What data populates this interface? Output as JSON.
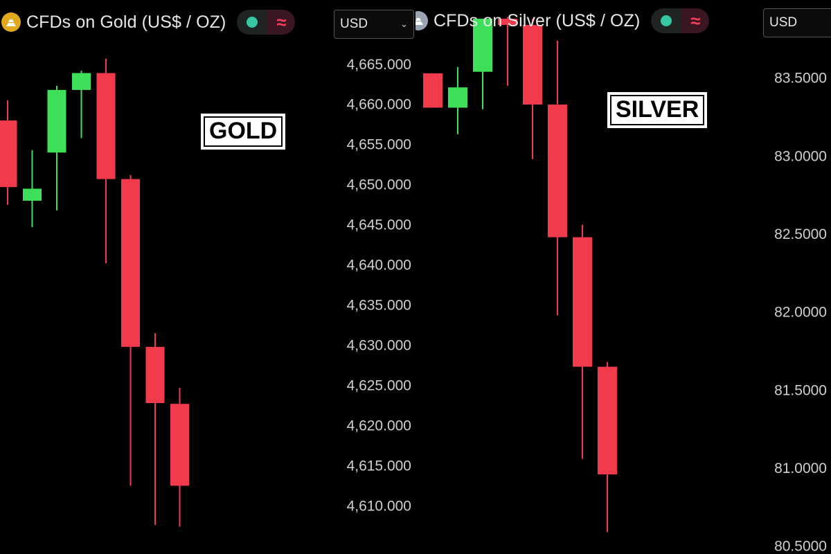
{
  "colors": {
    "up": "#3ee05a",
    "down": "#f23a4d",
    "background": "#000000",
    "text": "#d0d0d0"
  },
  "gold": {
    "header": {
      "title": "CFDs on Gold (US$ / OZ)",
      "logo_icon": "gold-bars-icon",
      "logo_color": "#e0a91e",
      "status_dot_color": "#35c6a3",
      "status_wave_icon": "≈",
      "status_wave_color": "#f0405c"
    },
    "currency": "USD",
    "watermark": "GOLD"
  },
  "silver": {
    "header": {
      "title": "CFDs on Silver (US$ / OZ)",
      "logo_icon": "silver-bars-icon",
      "logo_color": "#9aa4b3",
      "status_dot_color": "#35c6a3",
      "status_wave_icon": "≈",
      "status_wave_color": "#f0405c"
    },
    "currency": "USD",
    "watermark": "SILVER"
  },
  "chart_data": [
    {
      "type": "candlestick",
      "title": "CFDs on Gold (US$ / OZ)",
      "currency": "USD",
      "ylim": [
        4604,
        4673
      ],
      "yticks": [
        "4,665.000",
        "4,660.000",
        "4,655.000",
        "4,650.000",
        "4,645.000",
        "4,640.000",
        "4,635.000",
        "4,630.000",
        "4,625.000",
        "4,620.000",
        "4,615.000",
        "4,610.000"
      ],
      "candles": [
        {
          "open": 4658.0,
          "high": 4660.5,
          "low": 4647.5,
          "close": 4649.7
        },
        {
          "open": 4648.0,
          "high": 4654.3,
          "low": 4644.7,
          "close": 4649.5
        },
        {
          "open": 4654.0,
          "high": 4662.3,
          "low": 4646.8,
          "close": 4661.8
        },
        {
          "open": 4661.8,
          "high": 4664.2,
          "low": 4655.8,
          "close": 4663.9
        },
        {
          "open": 4663.9,
          "high": 4665.7,
          "low": 4640.2,
          "close": 4650.7
        },
        {
          "open": 4650.7,
          "high": 4651.2,
          "low": 4612.5,
          "close": 4629.8
        },
        {
          "open": 4629.8,
          "high": 4631.5,
          "low": 4607.6,
          "close": 4622.8
        },
        {
          "open": 4622.7,
          "high": 4624.7,
          "low": 4607.4,
          "close": 4612.5
        }
      ]
    },
    {
      "type": "candlestick",
      "title": "CFDs on Silver (US$ / OZ)",
      "currency": "USD",
      "ylim": [
        80.45,
        84.0
      ],
      "yticks": [
        "83.5000",
        "83.0000",
        "82.5000",
        "82.0000",
        "81.5000",
        "81.0000",
        "80.5000"
      ],
      "candles": [
        {
          "open": 83.53,
          "high": 83.53,
          "low": 83.32,
          "close": 83.31
        },
        {
          "open": 83.31,
          "high": 83.57,
          "low": 83.14,
          "close": 83.44
        },
        {
          "open": 83.54,
          "high": 83.88,
          "low": 83.3,
          "close": 83.88
        },
        {
          "open": 83.88,
          "high": 83.89,
          "low": 83.45,
          "close": 83.84
        },
        {
          "open": 83.84,
          "high": 83.88,
          "low": 82.98,
          "close": 83.33
        },
        {
          "open": 83.33,
          "high": 83.74,
          "low": 81.98,
          "close": 82.48
        },
        {
          "open": 82.48,
          "high": 82.56,
          "low": 81.06,
          "close": 81.65
        },
        {
          "open": 81.65,
          "high": 81.68,
          "low": 80.59,
          "close": 80.96
        }
      ]
    }
  ]
}
